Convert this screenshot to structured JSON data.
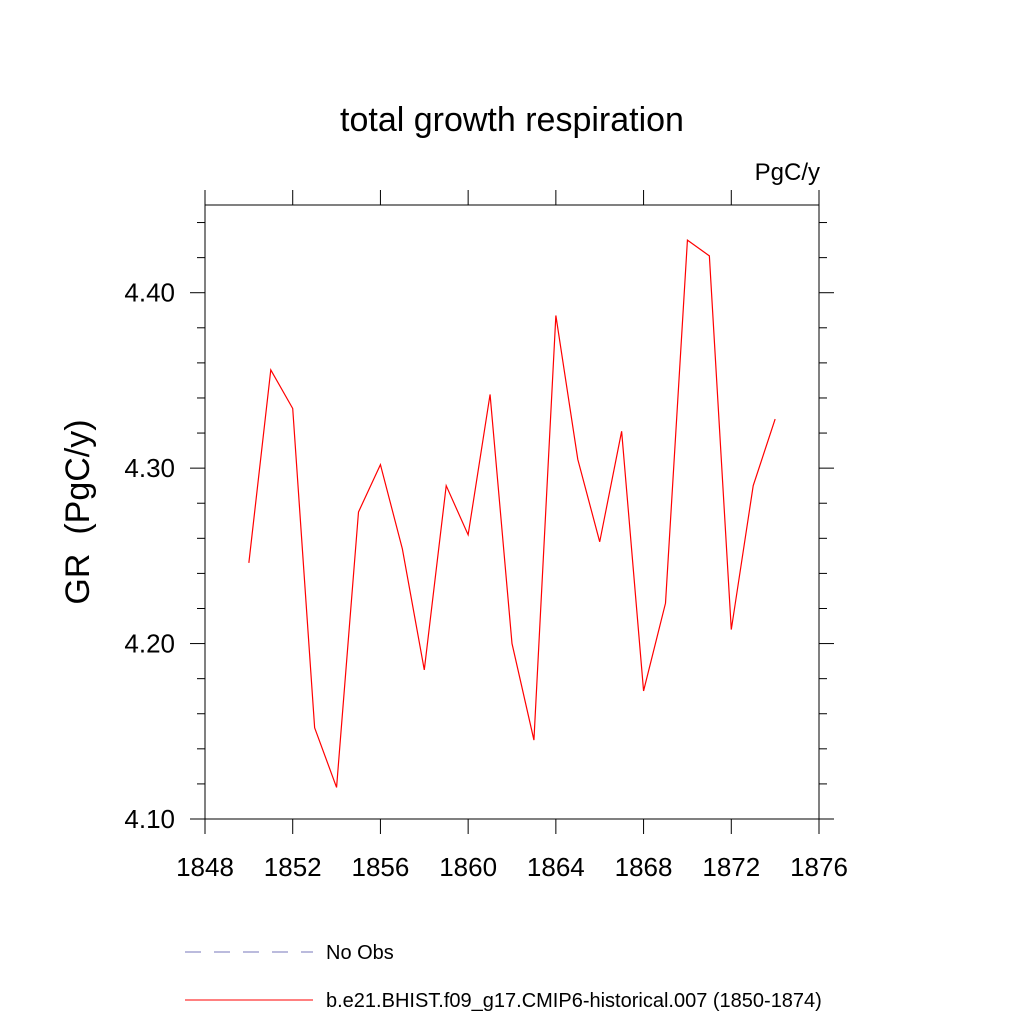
{
  "chart_data": {
    "type": "line",
    "title": "total growth respiration",
    "units_label": "PgC/y",
    "xlabel": "",
    "ylabel": "GR  (PgC/y)",
    "xlim": [
      1848,
      1876
    ],
    "ylim": [
      4.1,
      4.45
    ],
    "x_ticks": [
      1848,
      1852,
      1856,
      1860,
      1864,
      1868,
      1872,
      1876
    ],
    "x_tick_labels": [
      "1848",
      "1852",
      "1856",
      "1860",
      "1864",
      "1868",
      "1872",
      "1876"
    ],
    "y_ticks": [
      4.1,
      4.2,
      4.3,
      4.4
    ],
    "y_tick_labels": [
      "4.10",
      "4.20",
      "4.30",
      "4.40"
    ],
    "grid": false,
    "legend_position": "bottom",
    "series": [
      {
        "name": "b.e21.BHIST.f09_g17.CMIP6-historical.007 (1850-1874)",
        "color": "#ff0000",
        "dash": "solid",
        "x": [
          1850,
          1851,
          1852,
          1853,
          1854,
          1855,
          1856,
          1857,
          1858,
          1859,
          1860,
          1861,
          1862,
          1863,
          1864,
          1865,
          1866,
          1867,
          1868,
          1869,
          1870,
          1871,
          1872,
          1873,
          1874
        ],
        "values": [
          4.246,
          4.356,
          4.334,
          4.152,
          4.118,
          4.275,
          4.302,
          4.254,
          4.185,
          4.29,
          4.262,
          4.342,
          4.2,
          4.145,
          4.387,
          4.305,
          4.258,
          4.321,
          4.173,
          4.223,
          4.43,
          4.421,
          4.208,
          4.29,
          4.328
        ]
      }
    ],
    "legend": [
      {
        "label": "No Obs",
        "color": "#7777bb",
        "dash": "dashed"
      },
      {
        "label": "b.e21.BHIST.f09_g17.CMIP6-historical.007 (1850-1874)",
        "color": "#ff0000",
        "dash": "solid"
      }
    ]
  }
}
